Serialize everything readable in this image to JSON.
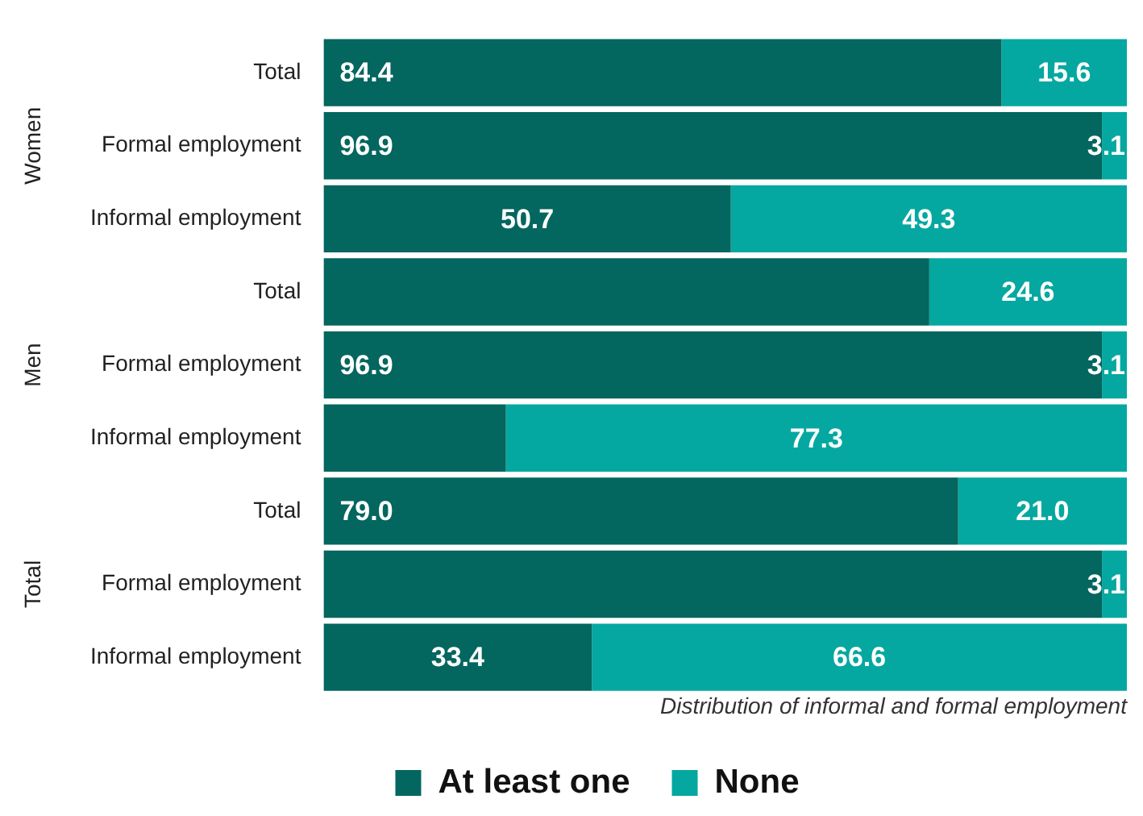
{
  "chart_data": {
    "type": "bar",
    "orientation": "horizontal",
    "stacked": true,
    "categories": [
      "Total",
      "Formal employment",
      "Informal employment",
      "Total",
      "Formal employment",
      "Informal employment",
      "Total",
      "Formal employment",
      "Informal employment"
    ],
    "series": [
      {
        "name": "At least one",
        "color": "#03665f",
        "values": [
          84.4,
          96.9,
          50.7,
          75.4,
          96.9,
          22.7,
          79.0,
          96.9,
          33.4
        ],
        "value_labels": [
          "84.4",
          "96.9",
          "50.7",
          null,
          "96.9",
          null,
          "79.0",
          null,
          "33.4"
        ]
      },
      {
        "name": "None",
        "color": "#05a8a0",
        "values": [
          15.6,
          3.1,
          49.3,
          24.6,
          3.1,
          77.3,
          21.0,
          3.1,
          66.6
        ],
        "value_labels": [
          "15.6",
          "3.1",
          "49.3",
          "24.6",
          "3.1",
          "77.3",
          "21.0",
          "3.1",
          "66.6"
        ]
      }
    ],
    "xlim": [
      0,
      100
    ],
    "xlabel": "Distribution of informal and formal employment",
    "annotations": [
      "Women",
      "Men",
      "Total"
    ],
    "tick_labels": "y",
    "grid": false,
    "legend": "bottom"
  }
}
